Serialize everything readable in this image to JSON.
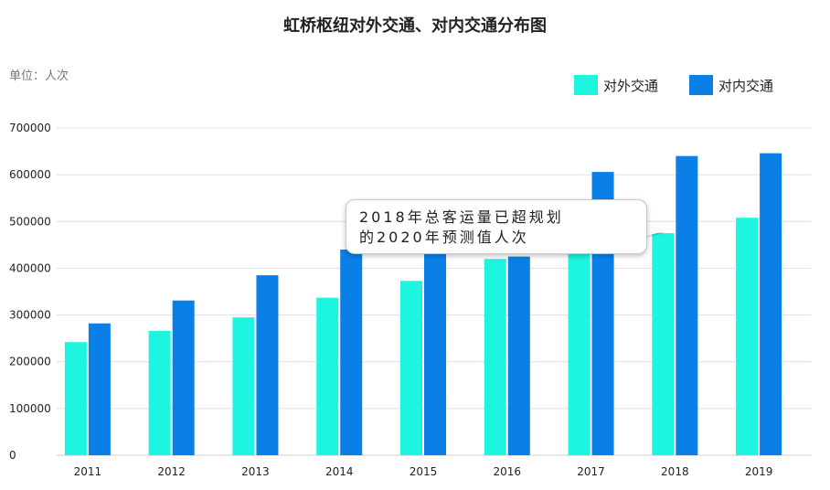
{
  "page": {
    "title": "虹桥枢纽对外交通、对内交通分布图",
    "unit": "单位：人次",
    "callout": {
      "line1": "2018年总客运量已超规划",
      "line2": "的2020年预测值人次"
    }
  },
  "chart_data": {
    "type": "bar",
    "title": "虹桥枢纽对外交通、对内交通分布图",
    "categories": [
      "2011",
      "2012",
      "2013",
      "2014",
      "2015",
      "2016",
      "2017",
      "2018",
      "2019"
    ],
    "series": [
      {
        "name": "对外交通",
        "color": "#1df5e1",
        "values": [
          242000,
          266000,
          295000,
          337000,
          373000,
          420000,
          440000,
          475000,
          508000
        ]
      },
      {
        "name": "对内交通",
        "color": "#0a7fe6",
        "values": [
          282000,
          331000,
          385000,
          440000,
          435000,
          425000,
          606000,
          640000,
          646000
        ]
      }
    ],
    "ylim": [
      0,
      700000
    ],
    "yticks": [
      "0",
      "100000",
      "200000",
      "300000",
      "400000",
      "500000",
      "600000",
      "700000"
    ],
    "grid": true,
    "legend_position": "top-right"
  }
}
